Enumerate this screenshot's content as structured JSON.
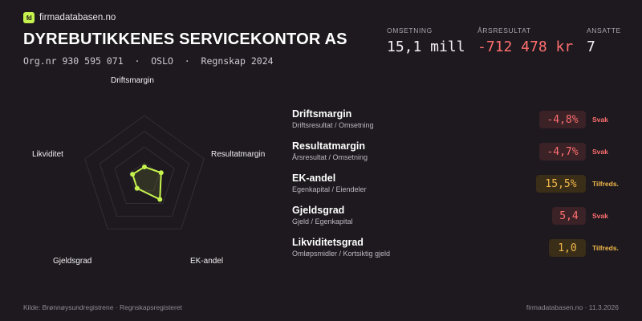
{
  "brand": {
    "logo_text": "fd",
    "name": "firmadatabasen.no"
  },
  "company": {
    "name": "DYREBUTIKKENES SERVICEKONTOR AS",
    "subtitle": "Org.nr 930 595 071  ·  OSLO  ·  Regnskap 2024"
  },
  "stats": [
    {
      "label": "OMSETNING",
      "value": "15,1 mill",
      "tone": "neutral"
    },
    {
      "label": "ÅRSRESULTAT",
      "value": "-712 478 kr",
      "tone": "negative"
    },
    {
      "label": "ANSATTE",
      "value": "7",
      "tone": "neutral"
    }
  ],
  "radar": {
    "axes": [
      "Driftsmargin",
      "Resultatmargin",
      "EK-andel",
      "Gjeldsgrad",
      "Likviditet"
    ],
    "scores": [
      0.18,
      0.28,
      0.42,
      0.2,
      0.2
    ],
    "accent": "#c6f24e"
  },
  "metrics": [
    {
      "name": "Driftsmargin",
      "desc": "Driftsresultat / Omsetning",
      "value": "-4,8%",
      "rating": "Svak",
      "status": "svak"
    },
    {
      "name": "Resultatmargin",
      "desc": "Årsresultat / Omsetning",
      "value": "-4,7%",
      "rating": "Svak",
      "status": "svak"
    },
    {
      "name": "EK-andel",
      "desc": "Egenkapital / Eiendeler",
      "value": "15,5%",
      "rating": "Tilfreds.",
      "status": "tilf"
    },
    {
      "name": "Gjeldsgrad",
      "desc": "Gjeld / Egenkapital",
      "value": "5,4",
      "rating": "Svak",
      "status": "svak"
    },
    {
      "name": "Likviditetsgrad",
      "desc": "Omløpsmidler / Kortsiktig gjeld",
      "value": "1,0",
      "rating": "Tilfreds.",
      "status": "tilf"
    }
  ],
  "footer": {
    "source": "Kilde: Brønnøysundregistrene · Regnskapsregisteret",
    "site_date": "firmadatabasen.no · 11.3.2026"
  },
  "colors": {
    "background": "#1d191e",
    "negative": "#ff6f6f",
    "warning": "#f2b84b",
    "accent": "#c6f24e"
  }
}
